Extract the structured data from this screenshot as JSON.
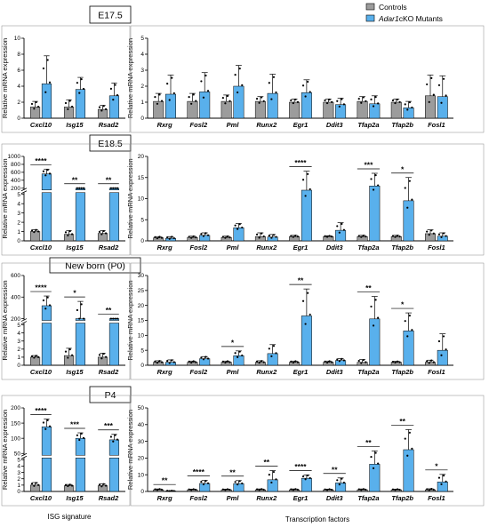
{
  "legend": [
    {
      "label": "Controls",
      "color": "#9c9c9c"
    },
    {
      "label_italic": "Adar1",
      "label_rest": "cKO Mutants",
      "color": "#59b0ec"
    }
  ],
  "footer": {
    "left": "ISG signature",
    "right": "Transcription factors"
  },
  "ylabel": {
    "italic": "",
    "text": "Relative mRNA expression"
  },
  "ylabel_mixed": {
    "italic": "",
    "text": "Relative mRNA expression"
  },
  "chart_data": [
    {
      "type": "bar",
      "panel": "E17.5 ISG",
      "title": "E17.5",
      "ylabel": "Relative mRNA expression",
      "categories": [
        "Cxcl10",
        "Isg15",
        "Rsad2"
      ],
      "ylim": [
        0,
        10
      ],
      "yticks": [
        0,
        2,
        4,
        6,
        8,
        10
      ],
      "series": [
        {
          "name": "Controls",
          "values": [
            1.4,
            1.4,
            1.1
          ],
          "errors": [
            0.7,
            0.9,
            0.5
          ]
        },
        {
          "name": "Adar1cKO Mutants",
          "values": [
            4.3,
            3.6,
            2.8
          ],
          "errors": [
            3.5,
            1.5,
            1.6
          ]
        }
      ],
      "significance": [
        "",
        "",
        ""
      ]
    },
    {
      "type": "bar",
      "panel": "E17.5 TF",
      "categories": [
        "Rxrg",
        "Fosl2",
        "Pml",
        "Runx2",
        "Egr1",
        "Ddit3",
        "Tfap2a",
        "Tfap2b",
        "Fosl1"
      ],
      "ylim": [
        0,
        5
      ],
      "yticks": [
        0,
        1,
        2,
        3,
        4,
        5
      ],
      "series": [
        {
          "name": "Controls",
          "values": [
            1.05,
            1.05,
            1.05,
            1.05,
            1.0,
            1.0,
            1.05,
            1.0,
            1.4
          ],
          "errors": [
            0.5,
            0.5,
            0.4,
            0.3,
            0.2,
            0.2,
            0.3,
            0.2,
            1.3
          ]
        },
        {
          "name": "Adar1cKO Mutants",
          "values": [
            1.5,
            1.65,
            2.0,
            1.55,
            1.6,
            0.85,
            0.9,
            0.65,
            1.35
          ],
          "errors": [
            1.2,
            1.2,
            1.3,
            1.2,
            0.8,
            0.4,
            0.5,
            0.4,
            1.3
          ]
        }
      ],
      "significance": [
        "",
        "",
        "",
        "",
        "",
        "",
        "",
        "",
        ""
      ]
    },
    {
      "type": "bar",
      "panel": "E18.5 ISG",
      "title": "E18.5",
      "categories": [
        "Cxcl10",
        "Isg15",
        "Rsad2"
      ],
      "yticks": [
        0,
        1,
        2,
        3,
        4,
        5,
        200,
        400,
        600,
        800,
        1000
      ],
      "series": [
        {
          "name": "Controls",
          "values": [
            1.0,
            0.7,
            0.8
          ],
          "errors": [
            0.2,
            0.4,
            0.3
          ]
        },
        {
          "name": "Adar1cKO Mutants",
          "values": [
            560,
            92,
            48
          ],
          "errors": [
            120,
            15,
            4
          ]
        }
      ],
      "significance": [
        "****",
        "**",
        "**"
      ]
    },
    {
      "type": "bar",
      "panel": "E18.5 TF",
      "categories": [
        "Rxrg",
        "Fosl2",
        "Pml",
        "Runx2",
        "Egr1",
        "Ddit3",
        "Tfap2a",
        "Tfap2b",
        "Fosl1"
      ],
      "ylim": [
        0,
        20
      ],
      "yticks": [
        0,
        5,
        10,
        15,
        20
      ],
      "series": [
        {
          "name": "Controls",
          "values": [
            0.7,
            0.8,
            0.8,
            1.0,
            1.0,
            1.0,
            1.0,
            1.0,
            1.7
          ],
          "errors": [
            0.3,
            0.3,
            0.3,
            0.9,
            0.3,
            0.2,
            0.3,
            0.3,
            0.9
          ]
        },
        {
          "name": "Adar1cKO Mutants",
          "values": [
            0.6,
            1.3,
            3.1,
            0.9,
            12.0,
            2.5,
            13.0,
            9.5,
            1.1
          ],
          "errors": [
            0.4,
            0.6,
            1.0,
            0.6,
            4.5,
            1.8,
            3.0,
            5.5,
            0.8
          ]
        }
      ],
      "significance": [
        "",
        "",
        "",
        "",
        "****",
        "",
        "***",
        "*",
        ""
      ]
    },
    {
      "type": "bar",
      "panel": "New born (P0) ISG",
      "title": "New born (P0)",
      "categories": [
        "Cxcl10",
        "Isg15",
        "Rsad2"
      ],
      "yticks": [
        0,
        1,
        2,
        3,
        4,
        5,
        200,
        400,
        600
      ],
      "series": [
        {
          "name": "Controls",
          "values": [
            1.0,
            1.2,
            1.0
          ],
          "errors": [
            0.2,
            0.9,
            0.5
          ]
        },
        {
          "name": "Adar1cKO Mutants",
          "values": [
            320,
            180,
            95
          ],
          "errors": [
            90,
            180,
            20
          ]
        }
      ],
      "significance": [
        "****",
        "*",
        "**"
      ]
    },
    {
      "type": "bar",
      "panel": "New born (P0) TF",
      "categories": [
        "Rxrg",
        "Fosl2",
        "Pml",
        "Runx2",
        "Egr1",
        "Ddit3",
        "Tfap2a",
        "Tfap2b",
        "Fosl1"
      ],
      "ylim": [
        0,
        30
      ],
      "yticks": [
        0,
        5,
        10,
        15,
        20,
        25,
        30
      ],
      "series": [
        {
          "name": "Controls",
          "values": [
            1.0,
            1.0,
            1.0,
            1.0,
            1.0,
            1.0,
            1.0,
            1.0,
            1.0
          ],
          "errors": [
            0.5,
            0.4,
            0.4,
            0.5,
            0.4,
            0.4,
            0.9,
            0.3,
            0.7
          ]
        },
        {
          "name": "Adar1cKO Mutants",
          "values": [
            1.0,
            2.2,
            3.2,
            3.9,
            16.5,
            1.6,
            15.5,
            11.5,
            5.0
          ],
          "errors": [
            0.8,
            0.7,
            1.6,
            3.0,
            9.0,
            0.6,
            7.5,
            6.0,
            5.5
          ]
        }
      ],
      "significance": [
        "",
        "",
        "*",
        "",
        "**",
        "",
        "**",
        "*",
        ""
      ]
    },
    {
      "type": "bar",
      "panel": "P4 ISG",
      "title": "P4",
      "categories": [
        "Cxcl10",
        "Isg15",
        "Rsad2"
      ],
      "yticks": [
        0,
        1,
        2,
        3,
        4,
        5,
        50,
        100,
        150,
        200
      ],
      "series": [
        {
          "name": "Controls",
          "values": [
            1.0,
            0.9,
            0.9
          ],
          "errors": [
            0.4,
            0.2,
            0.3
          ]
        },
        {
          "name": "Adar1cKO Mutants",
          "values": [
            138,
            100,
            95
          ],
          "errors": [
            25,
            18,
            18
          ]
        }
      ],
      "significance": [
        "****",
        "***",
        "***"
      ]
    },
    {
      "type": "bar",
      "panel": "P4 TF",
      "categories": [
        "Rxrg",
        "Fosl2",
        "Pml",
        "Runx2",
        "Egr1",
        "Ddit3",
        "Tfap2a",
        "Tfap2b",
        "Fosl1"
      ],
      "ylim": [
        0,
        50
      ],
      "yticks": [
        0,
        10,
        20,
        30,
        40,
        50
      ],
      "series": [
        {
          "name": "Controls",
          "values": [
            1.0,
            1.0,
            1.0,
            1.0,
            1.0,
            1.0,
            1.0,
            1.0,
            1.0
          ],
          "errors": [
            0.5,
            0.4,
            0.4,
            0.5,
            0.5,
            0.4,
            0.5,
            0.4,
            0.6
          ]
        },
        {
          "name": "Adar1cKO Mutants",
          "values": [
            0.3,
            4.8,
            4.7,
            7.0,
            7.9,
            5.1,
            16.3,
            25.0,
            5.7
          ],
          "errors": [
            0.2,
            1.8,
            1.8,
            5.5,
            2.0,
            3.0,
            8.0,
            12.0,
            4.5
          ]
        }
      ],
      "significance": [
        "**",
        "****",
        "**",
        "**",
        "****",
        "**",
        "**",
        "**",
        "*"
      ]
    }
  ]
}
